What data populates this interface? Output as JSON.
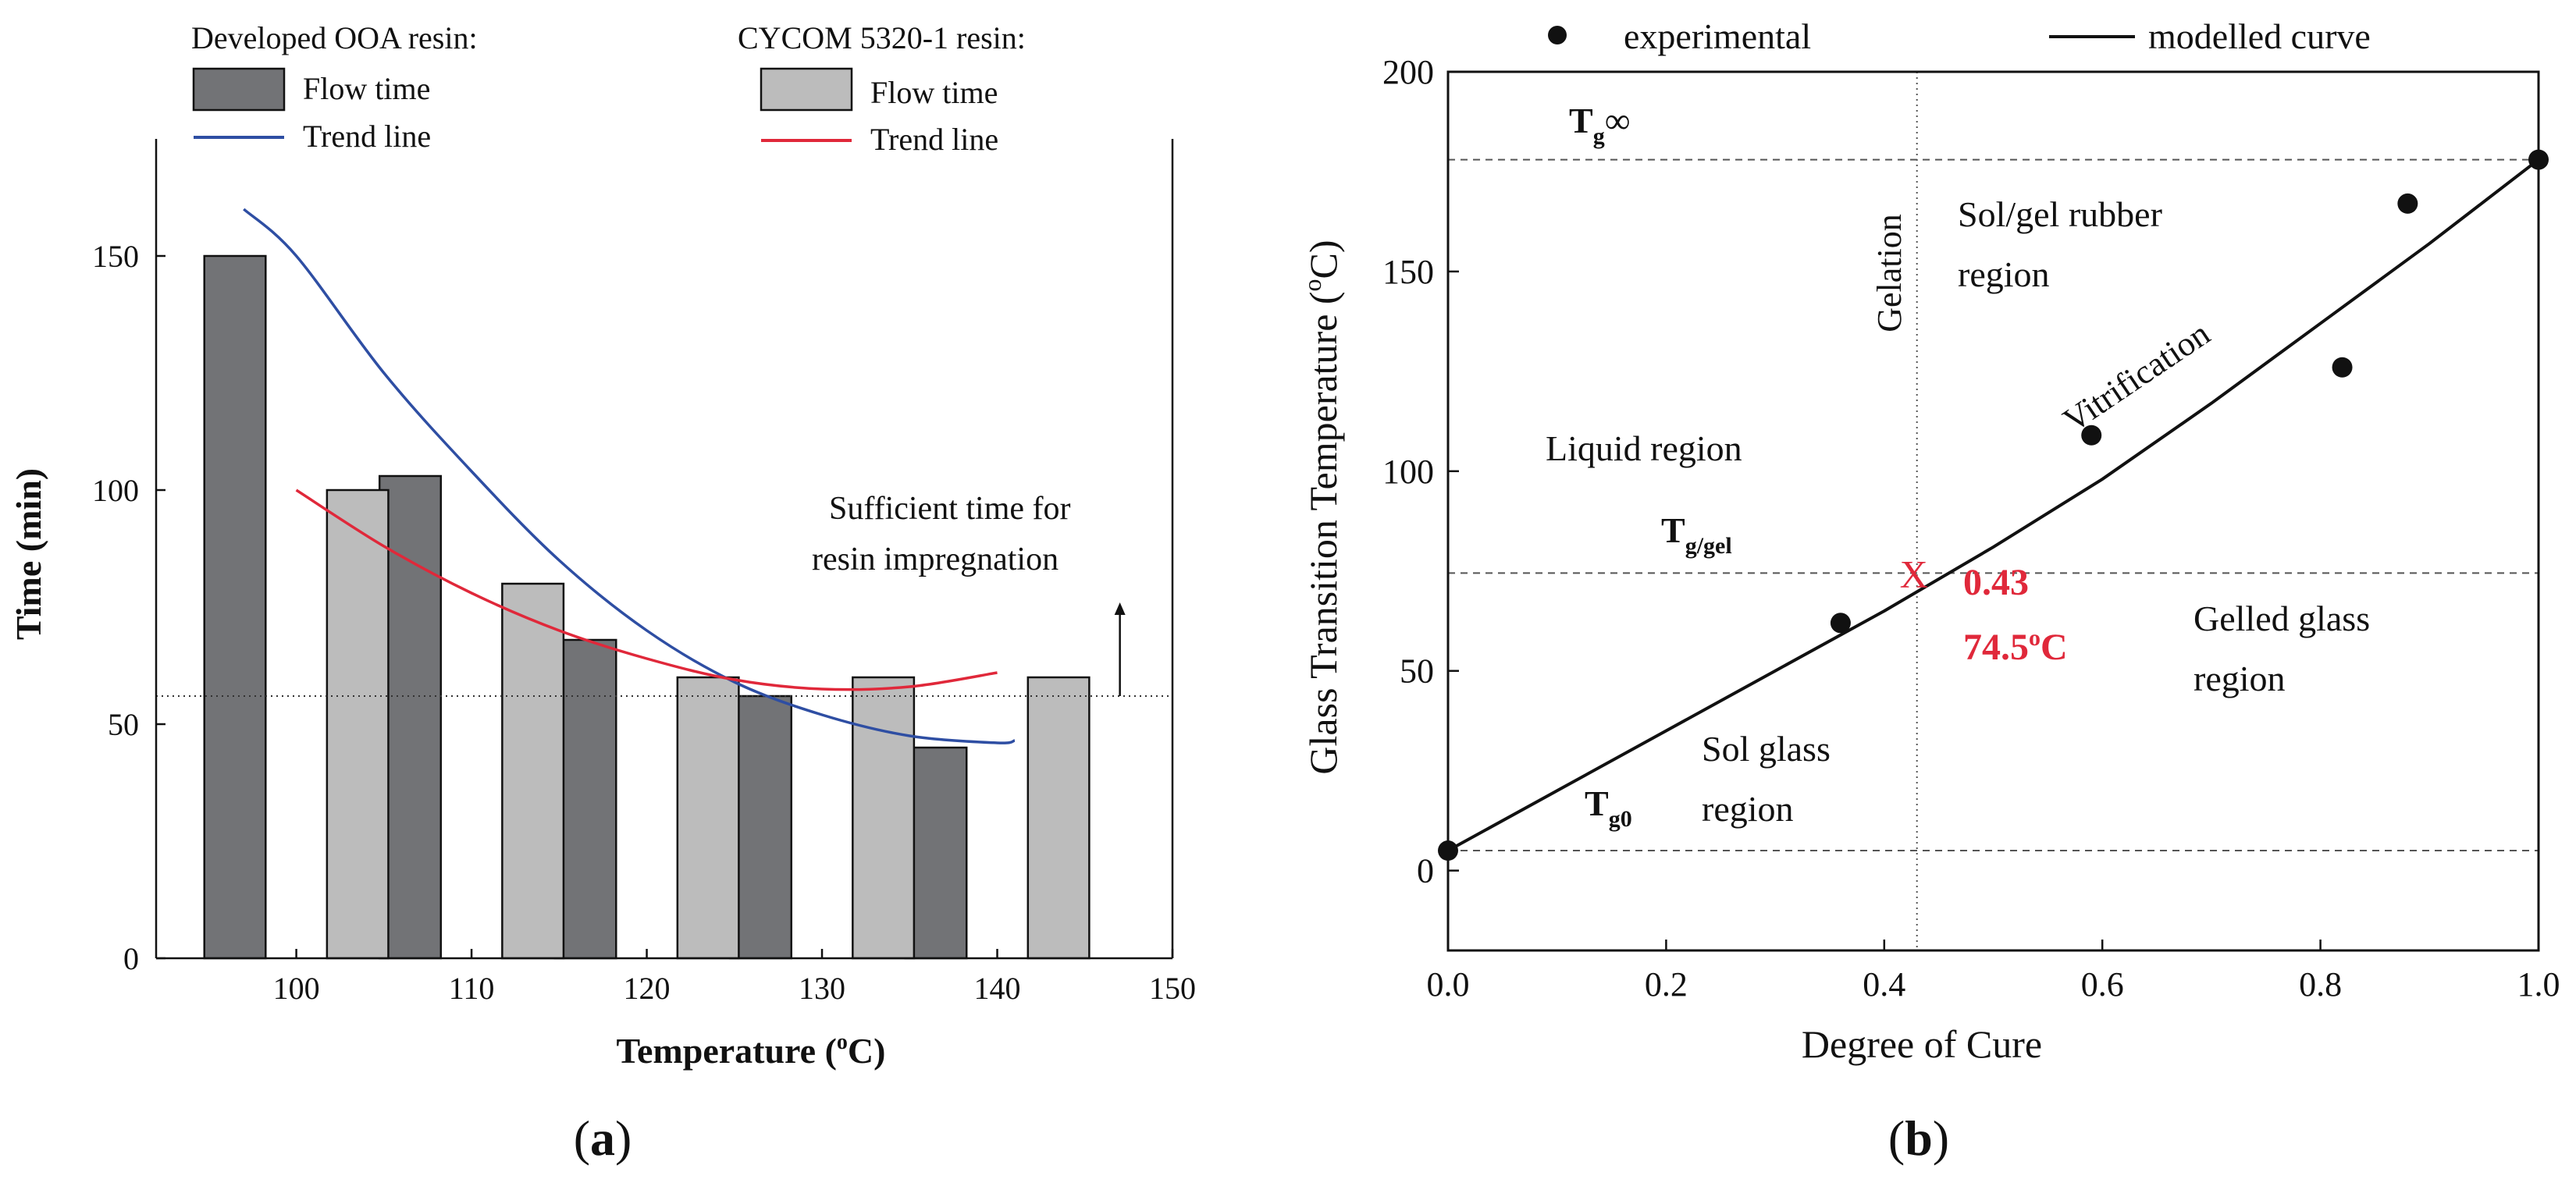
{
  "chart_data": [
    {
      "panel": "(a)",
      "type": "bar",
      "xlabel": "Temperature (°C)",
      "xlabel_parts": {
        "pre": "Temperature (",
        "sup": "o",
        "post": "C)"
      },
      "ylabel": "Time (min)",
      "xlim": [
        92,
        150
      ],
      "ylim": [
        0,
        175
      ],
      "xticks": [
        100,
        110,
        120,
        130,
        140,
        150
      ],
      "yticks": [
        0,
        50,
        100,
        150
      ],
      "categories": [
        100,
        110,
        120,
        130,
        140
      ],
      "series": [
        {
          "name": "Flow time",
          "group": "Developed OOA resin",
          "color": "#727376",
          "offset": -3.5,
          "values": [
            150,
            103,
            68,
            56,
            45
          ]
        },
        {
          "name": "Flow time",
          "group": "CYCOM 5320-1 resin",
          "color": "#bcbcbc",
          "offset": 3.5,
          "values": [
            100,
            80,
            60,
            60,
            60
          ]
        }
      ],
      "trend_lines": [
        {
          "name": "Trend line",
          "group": "Developed OOA resin",
          "color": "#2e4ea3",
          "x": [
            97,
            100,
            105,
            110,
            115,
            120,
            125,
            130,
            135,
            140,
            141
          ],
          "y": [
            160,
            150,
            125,
            104,
            85,
            70,
            59,
            52,
            47.5,
            46,
            46.5
          ]
        },
        {
          "name": "Trend line",
          "group": "CYCOM 5320-1 resin",
          "color": "#e0283a",
          "x": [
            100,
            105,
            110,
            115,
            120,
            125,
            130,
            135,
            140
          ],
          "y": [
            100,
            88,
            78,
            70,
            64,
            59.5,
            57.5,
            58,
            61
          ]
        }
      ],
      "reference_line": {
        "y": 56,
        "style": "dotted"
      },
      "annotation": {
        "line1": "Sufficient time for",
        "line2": "resin impregnation",
        "arrow": "up",
        "arrow_x": 147,
        "arrow_y_from": 56,
        "arrow_y_to": 76
      },
      "legend": {
        "placement": "top",
        "group1_title": "Developed OOA resin:",
        "group2_title": "CYCOM 5320-1 resin:",
        "bar_label": "Flow time",
        "line_label": "Trend line"
      }
    },
    {
      "panel": "(b)",
      "type": "scatter",
      "xlabel": "Degree of Cure",
      "ylabel": "Glass Transition Temperature (°C)",
      "ylabel_parts": {
        "pre": "Glass Transition Temperature (",
        "sup": "o",
        "post": "C)"
      },
      "xlim": [
        0.0,
        1.0
      ],
      "ylim": [
        -20,
        200
      ],
      "xticks": [
        0.0,
        0.2,
        0.4,
        0.6,
        0.8,
        1.0
      ],
      "xtick_labels": [
        "0.0",
        "0.2",
        "0.4",
        "0.6",
        "0.8",
        "1.0"
      ],
      "yticks": [
        0,
        50,
        100,
        150,
        200
      ],
      "series": [
        {
          "name": "experimental",
          "kind": "points",
          "x": [
            0.0,
            0.36,
            0.59,
            0.82,
            0.88,
            1.0
          ],
          "y": [
            5,
            62,
            109,
            126,
            167,
            178
          ]
        },
        {
          "name": "modelled curve",
          "kind": "line",
          "x": [
            0.0,
            0.1,
            0.2,
            0.3,
            0.4,
            0.5,
            0.6,
            0.7,
            0.8,
            0.9,
            1.0
          ],
          "y": [
            5,
            20,
            35,
            50,
            65,
            81,
            98,
            117,
            137,
            157,
            178
          ]
        }
      ],
      "reference_lines": {
        "tg_inf": 178,
        "tg_gel": 74.5,
        "tg0": 5,
        "gelation_x": 0.43
      },
      "gel_point": {
        "x": 0.43,
        "y": 74.5,
        "marker": "X",
        "label_x": "0.43",
        "label_y": "74.5°C",
        "label_y_parts": {
          "pre": "74.5",
          "sup": "o",
          "post": "C"
        },
        "color": "#e0283a"
      },
      "labels": {
        "tg_inf": {
          "main": "T",
          "sub": "g",
          "tail": "∞"
        },
        "tg_gel": {
          "main": "T",
          "sub": "g/gel"
        },
        "tg0": {
          "main": "T",
          "sub": "g0"
        },
        "gelation": "Gelation",
        "vitrification": "Vitrification",
        "sol_gel_rubber_1": "Sol/gel rubber",
        "sol_gel_rubber_2": "region",
        "liquid": "Liquid region",
        "gelled_glass_1": "Gelled glass",
        "gelled_glass_2": "region",
        "sol_glass_1": "Sol glass",
        "sol_glass_2": "region"
      },
      "legend": {
        "placement": "top",
        "experimental": "experimental",
        "modelled": "modelled curve"
      }
    }
  ],
  "captions": {
    "a": "(a)",
    "b": "(b)",
    "a_letter": "a",
    "b_letter": "b"
  }
}
